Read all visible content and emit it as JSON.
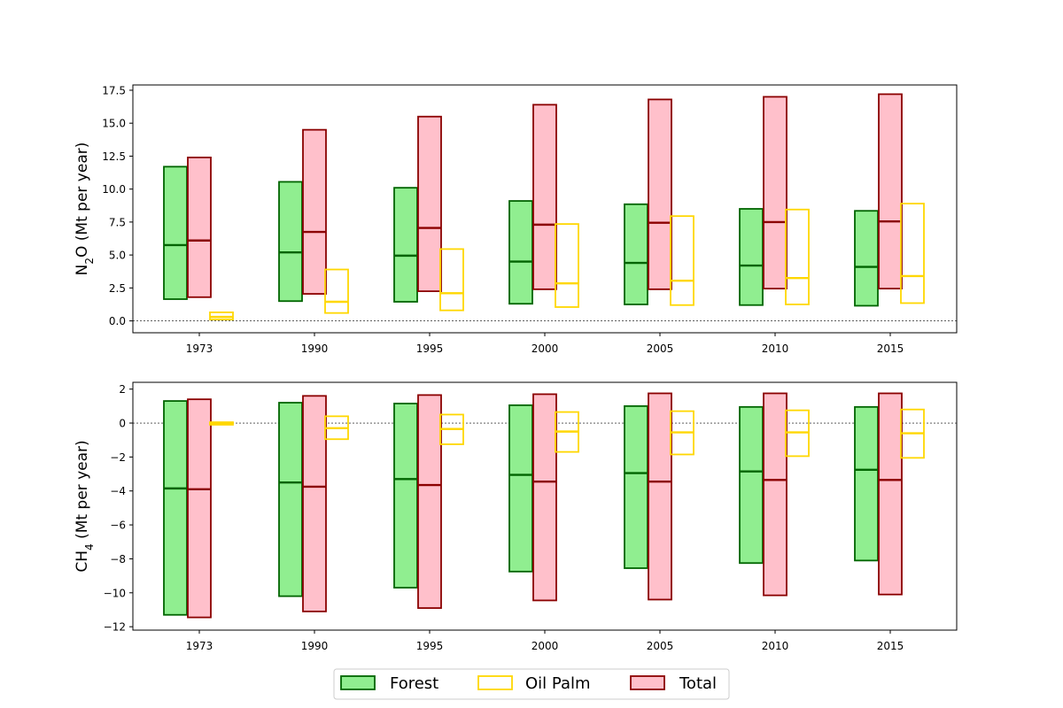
{
  "chart_data": [
    {
      "type": "box",
      "panel": "top",
      "ylabel_main": "N",
      "ylabel_sub": "2",
      "ylabel_rest": "O (Mt per year)",
      "categories": [
        "1973",
        "1990",
        "1995",
        "2000",
        "2005",
        "2010",
        "2015"
      ],
      "ylim": [
        -0.9,
        17.9
      ],
      "yticks": [
        0.0,
        2.5,
        5.0,
        7.5,
        10.0,
        12.5,
        15.0,
        17.5
      ],
      "ytick_labels": [
        "0.0",
        "2.5",
        "5.0",
        "7.5",
        "10.0",
        "12.5",
        "15.0",
        "17.5"
      ],
      "zero_line": true,
      "series": [
        {
          "name": "Forest",
          "low": [
            1.65,
            1.5,
            1.45,
            1.3,
            1.25,
            1.2,
            1.15
          ],
          "mid": [
            5.75,
            5.2,
            4.95,
            4.5,
            4.4,
            4.2,
            4.1
          ],
          "high": [
            11.7,
            10.55,
            10.1,
            9.1,
            8.85,
            8.5,
            8.35
          ]
        },
        {
          "name": "Total",
          "low": [
            1.8,
            2.05,
            2.25,
            2.4,
            2.4,
            2.45,
            2.45
          ],
          "mid": [
            6.1,
            6.75,
            7.05,
            7.3,
            7.45,
            7.5,
            7.55
          ],
          "high": [
            12.4,
            14.5,
            15.5,
            16.4,
            16.8,
            17.0,
            17.2
          ]
        },
        {
          "name": "Oil Palm",
          "low": [
            0.1,
            0.6,
            0.8,
            1.05,
            1.2,
            1.25,
            1.35
          ],
          "mid": [
            0.3,
            1.45,
            2.1,
            2.85,
            3.05,
            3.25,
            3.4
          ],
          "high": [
            0.65,
            3.9,
            5.45,
            7.35,
            7.95,
            8.45,
            8.9
          ]
        }
      ]
    },
    {
      "type": "box",
      "panel": "bottom",
      "ylabel_main": "CH",
      "ylabel_sub": "4",
      "ylabel_rest": " (Mt per year)",
      "categories": [
        "1973",
        "1990",
        "1995",
        "2000",
        "2005",
        "2010",
        "2015"
      ],
      "ylim": [
        -12.2,
        2.4
      ],
      "yticks": [
        2,
        0,
        -2,
        -4,
        -6,
        -8,
        -10,
        -12
      ],
      "ytick_labels": [
        "2",
        "0",
        "−2",
        "−4",
        "−6",
        "−8",
        "−10",
        "−12"
      ],
      "zero_line": true,
      "series": [
        {
          "name": "Forest",
          "low": [
            -11.3,
            -10.2,
            -9.7,
            -8.75,
            -8.55,
            -8.25,
            -8.1
          ],
          "mid": [
            -3.85,
            -3.5,
            -3.3,
            -3.05,
            -2.95,
            -2.85,
            -2.75
          ],
          "high": [
            1.3,
            1.2,
            1.15,
            1.05,
            1.0,
            0.95,
            0.95
          ]
        },
        {
          "name": "Total",
          "low": [
            -11.45,
            -11.1,
            -10.9,
            -10.45,
            -10.4,
            -10.15,
            -10.1
          ],
          "mid": [
            -3.9,
            -3.75,
            -3.65,
            -3.45,
            -3.45,
            -3.35,
            -3.35
          ],
          "high": [
            1.4,
            1.6,
            1.65,
            1.7,
            1.75,
            1.75,
            1.75
          ]
        },
        {
          "name": "Oil Palm",
          "low": [
            -0.1,
            -0.95,
            -1.25,
            -1.7,
            -1.85,
            -1.95,
            -2.05
          ],
          "mid": [
            0.0,
            -0.3,
            -0.35,
            -0.5,
            -0.55,
            -0.55,
            -0.6
          ],
          "high": [
            0.05,
            0.4,
            0.5,
            0.65,
            0.7,
            0.75,
            0.8
          ]
        }
      ]
    }
  ],
  "legend": {
    "placement": "bottom-center",
    "items": [
      {
        "label": "Forest",
        "fill": "#90ee90",
        "stroke": "#006400"
      },
      {
        "label": "Oil Palm",
        "fill": "#ffffff",
        "stroke": "#ffd700"
      },
      {
        "label": "Total",
        "fill": "#ffc0cb",
        "stroke": "#8b0000"
      }
    ]
  },
  "colors": {
    "Forest": {
      "fill": "#90ee90",
      "stroke": "#006400"
    },
    "Oil Palm": {
      "fill": "none",
      "stroke": "#ffd700"
    },
    "Total": {
      "fill": "#ffc0cb",
      "stroke": "#8b0000"
    }
  }
}
